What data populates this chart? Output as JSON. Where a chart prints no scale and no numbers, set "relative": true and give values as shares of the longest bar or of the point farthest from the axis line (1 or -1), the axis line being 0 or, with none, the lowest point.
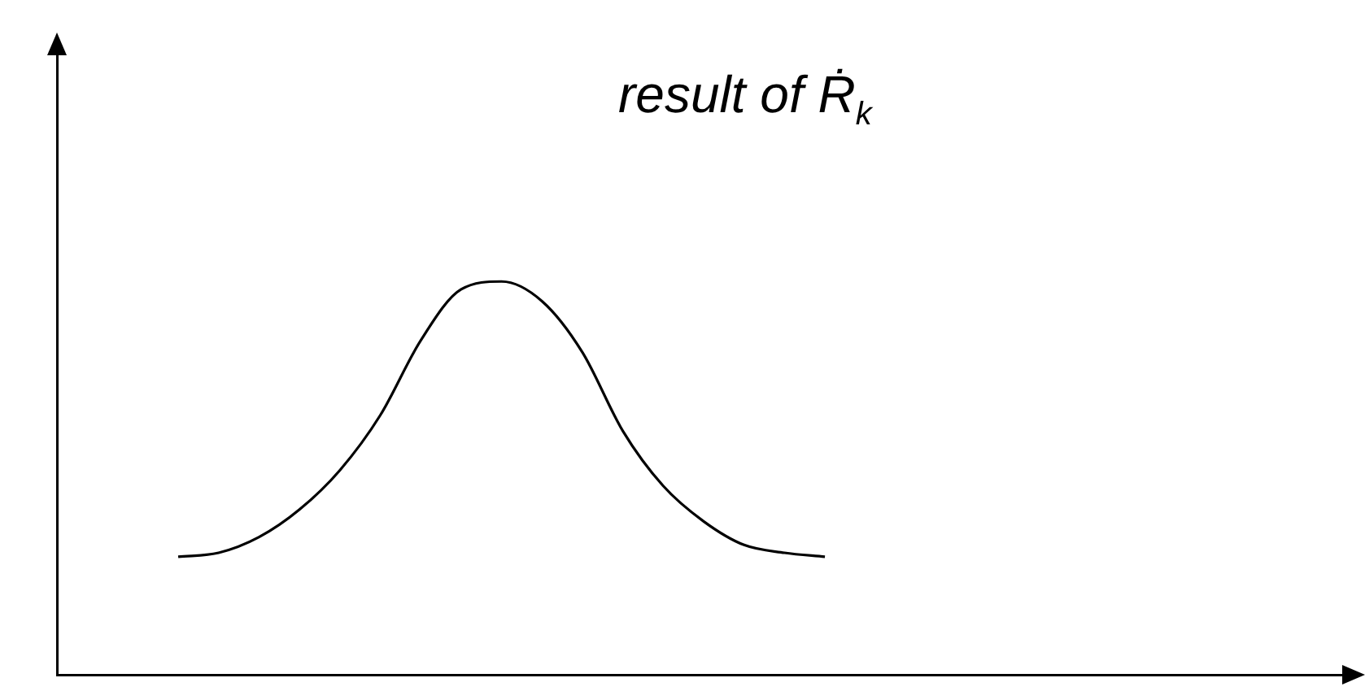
{
  "chart_data": {
    "type": "line",
    "title": "result of Ṙ$_{k}$",
    "relative": true,
    "tick_labels": false,
    "marker": "none",
    "line_style": "solid",
    "categories": [
      null,
      null,
      null,
      null,
      null,
      null,
      null,
      null,
      null,
      null,
      null,
      null,
      null,
      null,
      null,
      null,
      null,
      null,
      null,
      null,
      null,
      null,
      null,
      null,
      null,
      null,
      null,
      null,
      null,
      null,
      null,
      null,
      null
    ],
    "series": [
      {
        "color": "#000000",
        "values": [
          null,
          null,
          null,
          0.3,
          0.31,
          0.35,
          0.42,
          0.52,
          0.66,
          0.85,
          0.98,
          1.0,
          0.95,
          0.82,
          0.62,
          0.48,
          0.39,
          0.33,
          0.31,
          0.3,
          null,
          null,
          null,
          null,
          null,
          null,
          null,
          null,
          null,
          null,
          null,
          null,
          null
        ]
      }
    ]
  }
}
